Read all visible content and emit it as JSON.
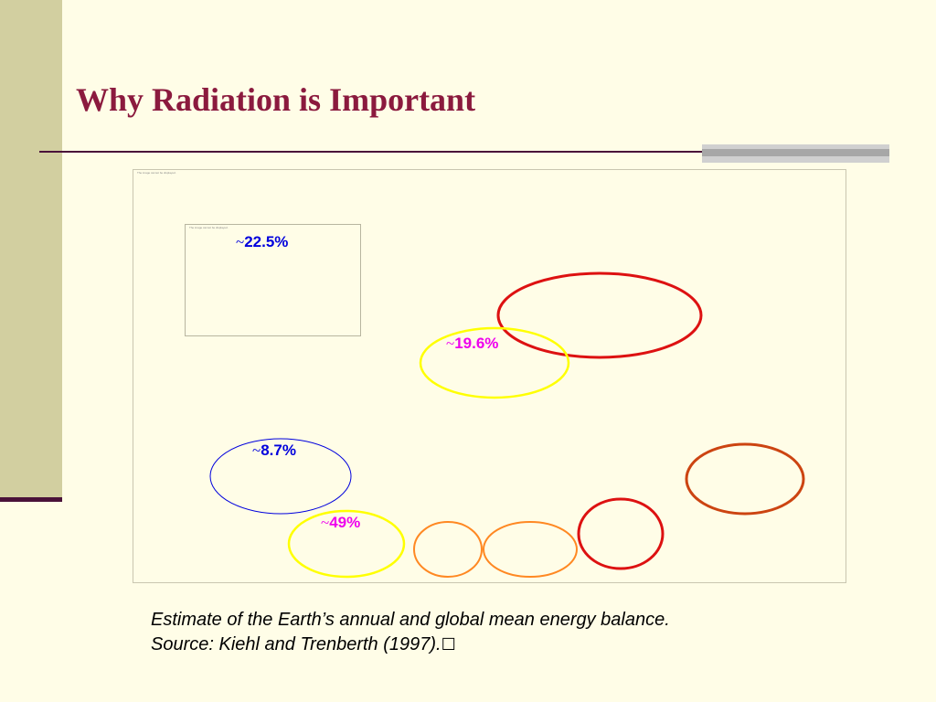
{
  "slide": {
    "title": "Why Radiation is Important",
    "accent_color": "#8b1a3e"
  },
  "figure": {
    "tiny_label_outer": "The image cannot be displayed.",
    "tiny_label_inner": "The image cannot be displayed.",
    "labels": {
      "p22": {
        "tilde": "~",
        "value": "22.5%",
        "color": "#0000dd"
      },
      "p196": {
        "tilde": "~",
        "value": "19.6%",
        "color": "#ee00ee"
      },
      "p87": {
        "tilde": "~",
        "value": "8.7%",
        "color": "#0000dd"
      },
      "p49": {
        "tilde": "~",
        "value": "49%",
        "color": "#ee00ee"
      }
    },
    "ellipse_colors": {
      "red": "#dd1111",
      "yellow": "#ffff00",
      "blue": "#0000dd",
      "orange": "#ff8822",
      "rust": "#cc4411"
    }
  },
  "caption": {
    "line1": "Estimate of the Earth’s annual and global mean energy balance.",
    "line2": "Source: Kiehl and Trenberth (1997).",
    "trail_glyph": "☐"
  }
}
